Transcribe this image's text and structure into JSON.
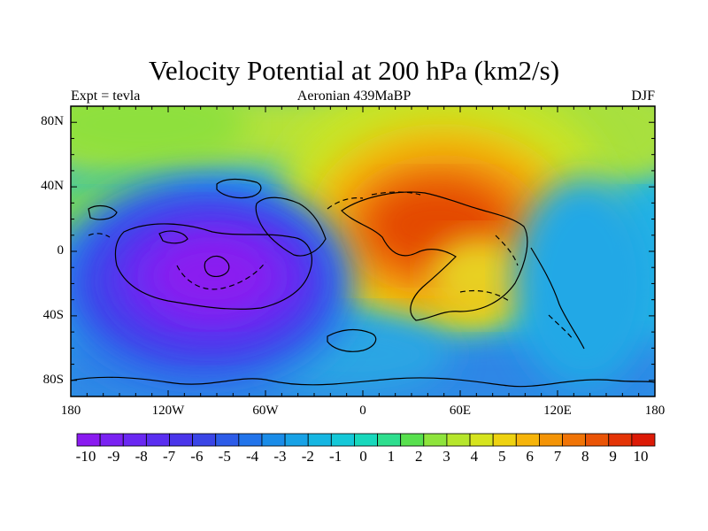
{
  "title": "Velocity Potential at 200 hPa (km2/s)",
  "left_label": "Expt = tevla",
  "center_label": "Aeronian 439MaBP",
  "right_label": "DJF",
  "y_ticks": [
    "80N",
    "40N",
    "0",
    "40S",
    "80S"
  ],
  "x_ticks": [
    "180",
    "120W",
    "60W",
    "0",
    "60E",
    "120E",
    "180"
  ],
  "colorbar": {
    "labels": [
      "-10",
      "-9",
      "-8",
      "-7",
      "-6",
      "-5",
      "-4",
      "-3",
      "-2",
      "-1",
      "0",
      "1",
      "2",
      "3",
      "4",
      "5",
      "6",
      "7",
      "8",
      "9",
      "10"
    ],
    "colors": [
      "#8a1bf0",
      "#7a22f2",
      "#6a28f2",
      "#5a2ef0",
      "#4a35ea",
      "#3a45e6",
      "#2d5ce8",
      "#2274ea",
      "#1a8ce8",
      "#18a2e6",
      "#16b6e2",
      "#15c8d8",
      "#18d8bc",
      "#2ede8e",
      "#58e04e",
      "#8ee43c",
      "#b6e62c",
      "#d6e41e",
      "#eed210",
      "#f6b40a",
      "#f49406",
      "#f07406",
      "#ea5406",
      "#e43406",
      "#dc1a06"
    ]
  }
}
